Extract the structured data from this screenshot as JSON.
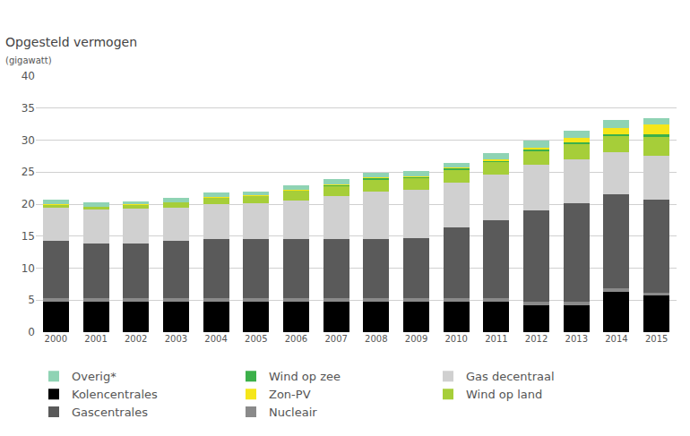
{
  "chart_data": {
    "type": "bar",
    "title": "Opgesteld vermogen",
    "subtitle": "(gigawatt)",
    "categories": [
      "2000",
      "2001",
      "2002",
      "2003",
      "2004",
      "2005",
      "2006",
      "2007",
      "2008",
      "2009",
      "2010",
      "2011",
      "2012",
      "2013",
      "2014",
      "2015"
    ],
    "stacked": true,
    "grid": true,
    "legend": "bottom",
    "ylim": [
      0,
      40
    ],
    "yticks": [
      0,
      5,
      10,
      15,
      20,
      25,
      30,
      35,
      40
    ],
    "series": [
      {
        "name": "Kolencentrales",
        "color": "#000000",
        "values": [
          4.8,
          4.8,
          4.8,
          4.8,
          4.8,
          4.8,
          4.8,
          4.8,
          4.8,
          4.8,
          4.8,
          4.8,
          4.2,
          4.2,
          6.3,
          5.7
        ]
      },
      {
        "name": "Nucleair",
        "color": "#8a8a8a",
        "values": [
          0.5,
          0.5,
          0.5,
          0.5,
          0.5,
          0.5,
          0.5,
          0.5,
          0.5,
          0.5,
          0.5,
          0.5,
          0.5,
          0.5,
          0.5,
          0.5
        ]
      },
      {
        "name": "Gascentrales",
        "color": "#5a5a5a",
        "values": [
          8.9,
          8.6,
          8.6,
          8.9,
          9.2,
          9.2,
          9.3,
          9.3,
          9.3,
          9.4,
          11.0,
          12.2,
          14.3,
          15.4,
          14.7,
          14.5
        ]
      },
      {
        "name": "Gas decentraal",
        "color": "#d0d0d0",
        "values": [
          5.3,
          5.2,
          5.4,
          5.3,
          5.5,
          5.6,
          6.0,
          6.6,
          7.3,
          7.6,
          7.1,
          7.1,
          7.1,
          6.9,
          6.6,
          6.8
        ]
      },
      {
        "name": "Wind op land",
        "color": "#a6ce39",
        "values": [
          0.4,
          0.5,
          0.6,
          0.8,
          1.0,
          1.2,
          1.5,
          1.6,
          2.0,
          1.8,
          2.0,
          2.0,
          2.2,
          2.4,
          2.6,
          3.0
        ]
      },
      {
        "name": "Wind op zee",
        "color": "#3cb04a",
        "values": [
          0,
          0,
          0,
          0,
          0,
          0,
          0.1,
          0.2,
          0.2,
          0.2,
          0.2,
          0.2,
          0.2,
          0.2,
          0.2,
          0.4
        ]
      },
      {
        "name": "Zon-PV",
        "color": "#f5e61a",
        "values": [
          0.05,
          0.05,
          0.05,
          0.05,
          0.05,
          0.05,
          0.05,
          0.05,
          0.05,
          0.1,
          0.1,
          0.15,
          0.3,
          0.7,
          1.0,
          1.5
        ]
      },
      {
        "name": "Overig*",
        "color": "#8fd3b4",
        "values": [
          0.7,
          0.6,
          0.5,
          0.6,
          0.7,
          0.6,
          0.7,
          0.8,
          0.7,
          0.8,
          0.8,
          1.0,
          1.2,
          1.2,
          1.3,
          1.0
        ]
      }
    ]
  }
}
